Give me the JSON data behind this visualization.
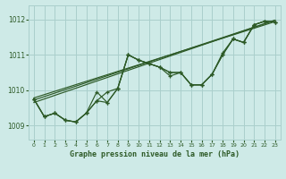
{
  "title": "Graphe pression niveau de la mer (hPa)",
  "background_color": "#ceeae7",
  "grid_color": "#aacfcc",
  "line_color": "#2d5a27",
  "xlim": [
    -0.5,
    23.5
  ],
  "ylim": [
    1008.6,
    1012.4
  ],
  "yticks": [
    1009,
    1010,
    1011,
    1012
  ],
  "xticks": [
    0,
    1,
    2,
    3,
    4,
    5,
    6,
    7,
    8,
    9,
    10,
    11,
    12,
    13,
    14,
    15,
    16,
    17,
    18,
    19,
    20,
    21,
    22,
    23
  ],
  "series1": [
    1009.75,
    1009.25,
    1009.35,
    1009.15,
    1009.1,
    1009.35,
    1009.7,
    1009.65,
    1010.05,
    1011.0,
    1010.85,
    1010.75,
    1010.65,
    1010.5,
    1010.5,
    1010.15,
    1010.15,
    1010.45,
    1011.0,
    1011.45,
    1011.35,
    1011.85,
    1011.95,
    1011.93
  ],
  "series2": [
    1009.75,
    1009.25,
    1009.35,
    1009.15,
    1009.1,
    1009.35,
    1009.95,
    1009.65,
    1010.05,
    1011.0,
    1010.85,
    1010.75,
    1010.65,
    1010.5,
    1010.5,
    1010.15,
    1010.15,
    1010.45,
    1011.0,
    1011.45,
    1011.35,
    1011.85,
    1011.95,
    1011.93
  ],
  "series3": [
    1009.75,
    1009.25,
    1009.35,
    1009.15,
    1009.1,
    1009.35,
    1009.7,
    1009.95,
    1010.05,
    1011.0,
    1010.85,
    1010.75,
    1010.65,
    1010.4,
    1010.5,
    1010.15,
    1010.15,
    1010.45,
    1011.05,
    1011.45,
    1011.35,
    1011.85,
    1011.95,
    1011.93
  ],
  "trend1_x": [
    0,
    23
  ],
  "trend1_y": [
    1009.65,
    1011.98
  ],
  "trend2_x": [
    0,
    23
  ],
  "trend2_y": [
    1009.72,
    1011.98
  ],
  "trend3_x": [
    0,
    23
  ],
  "trend3_y": [
    1009.78,
    1011.94
  ]
}
